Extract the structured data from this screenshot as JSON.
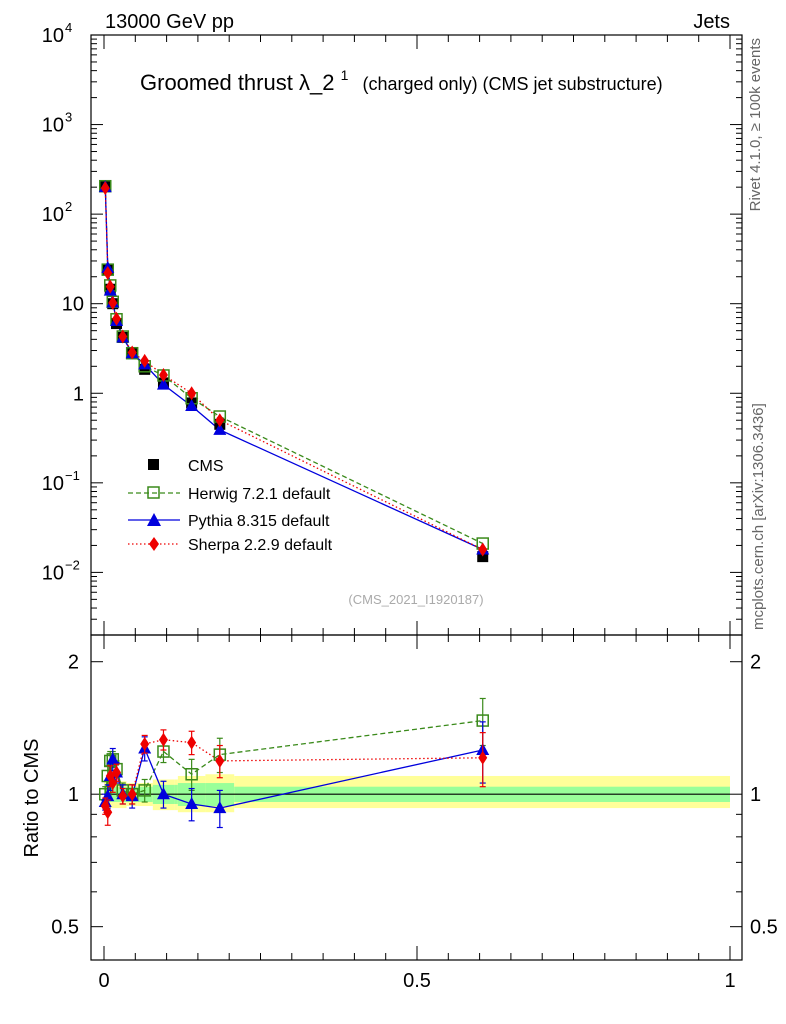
{
  "header": {
    "left": "13000 GeV pp",
    "right": "Jets"
  },
  "title": {
    "main": "Groomed thrust",
    "symbol": "λ_2",
    "superscript": "1",
    "suffix": "(charged only) (CMS jet substructure)"
  },
  "side_labels": {
    "top": "Rivet 4.1.0, ≥ 100k events",
    "bottom": "mcplots.cern.ch [arXiv:1306.3436]"
  },
  "analysis_id": "(CMS_2021_I1920187)",
  "ratio_ylabel": "Ratio to CMS",
  "colors": {
    "data": "#000000",
    "herwig": "#3a8a1a",
    "pythia": "#0000dd",
    "sherpa": "#ee0000",
    "band_inner": "#99ff99",
    "band_outer": "#ffff99"
  },
  "chart_data": [
    {
      "type": "line",
      "scale": "log",
      "xlim": [
        -0.02,
        1.0
      ],
      "ylim": [
        0.002,
        10000
      ],
      "yticks": [
        {
          "v": 10000,
          "label": "10",
          "sup": "4"
        },
        {
          "v": 1000,
          "label": "10",
          "sup": "3"
        },
        {
          "v": 100,
          "label": "10",
          "sup": "2"
        },
        {
          "v": 10,
          "label": "10",
          "sup": ""
        },
        {
          "v": 1,
          "label": "1",
          "sup": ""
        },
        {
          "v": 0.1,
          "label": "10",
          "sup": "−1"
        },
        {
          "v": 0.01,
          "label": "10",
          "sup": "−2"
        }
      ],
      "x": [
        0.002,
        0.006,
        0.01,
        0.014,
        0.02,
        0.03,
        0.045,
        0.065,
        0.095,
        0.14,
        0.185,
        0.605
      ],
      "series": [
        {
          "name": "CMS",
          "key": "data",
          "values": [
            205,
            24,
            14.5,
            10,
            6,
            4.2,
            2.8,
            1.85,
            1.3,
            0.78,
            0.45,
            0.015
          ]
        },
        {
          "name": "Herwig 7.2.1 default",
          "key": "herwig",
          "values": [
            205,
            24,
            16,
            10.5,
            6.7,
            4.3,
            2.8,
            2.0,
            1.58,
            0.88,
            0.55,
            0.021
          ]
        },
        {
          "name": "Pythia 8.315 default",
          "key": "pythia",
          "values": [
            200,
            25,
            14,
            10.3,
            6.4,
            4.2,
            2.8,
            2.1,
            1.25,
            0.72,
            0.39,
            0.018
          ]
        },
        {
          "name": "Sherpa 2.2.9 default",
          "key": "sherpa",
          "values": [
            195,
            22,
            15.5,
            10.2,
            6.8,
            4.3,
            2.85,
            2.3,
            1.6,
            1.0,
            0.5,
            0.018
          ]
        }
      ]
    },
    {
      "type": "line",
      "scale": "log",
      "xlim": [
        -0.02,
        1.0
      ],
      "ylim": [
        0.42,
        2.3
      ],
      "xticks": [
        {
          "v": 0,
          "label": "0"
        },
        {
          "v": 0.5,
          "label": "0.5"
        },
        {
          "v": 1,
          "label": "1"
        }
      ],
      "yticks": [
        {
          "v": 0.5,
          "label": "0.5"
        },
        {
          "v": 1,
          "label": "1"
        },
        {
          "v": 2,
          "label": "2"
        }
      ],
      "band_edges": [
        0.0,
        0.004,
        0.008,
        0.012,
        0.016,
        0.024,
        0.036,
        0.054,
        0.078,
        0.112,
        0.118,
        0.162,
        0.208,
        1.0
      ],
      "band_inner": [
        [
          0.96,
          1.04
        ],
        [
          0.96,
          1.04
        ],
        [
          0.96,
          1.04
        ],
        [
          0.96,
          1.04
        ],
        [
          0.96,
          1.04
        ],
        [
          0.96,
          1.04
        ],
        [
          0.96,
          1.04
        ],
        [
          0.96,
          1.04
        ],
        [
          0.95,
          1.05
        ],
        [
          0.95,
          1.05
        ],
        [
          0.94,
          1.06
        ],
        [
          0.94,
          1.06
        ],
        [
          0.96,
          1.04
        ]
      ],
      "band_outer": [
        [
          0.92,
          1.08
        ],
        [
          0.92,
          1.08
        ],
        [
          0.93,
          1.07
        ],
        [
          0.93,
          1.07
        ],
        [
          0.93,
          1.07
        ],
        [
          0.93,
          1.07
        ],
        [
          0.94,
          1.06
        ],
        [
          0.94,
          1.06
        ],
        [
          0.92,
          1.08
        ],
        [
          0.92,
          1.08
        ],
        [
          0.91,
          1.1
        ],
        [
          0.91,
          1.11
        ],
        [
          0.93,
          1.1
        ]
      ],
      "x": [
        0.002,
        0.006,
        0.01,
        0.014,
        0.02,
        0.03,
        0.045,
        0.065,
        0.095,
        0.14,
        0.185,
        0.605
      ],
      "series": [
        {
          "name": "Herwig 7.2.1 default",
          "key": "herwig",
          "values": [
            1.0,
            1.1,
            1.19,
            1.2,
            1.14,
            1.02,
            1.0,
            1.02,
            1.25,
            1.11,
            1.23,
            1.47
          ],
          "err": [
            0.04,
            0.06,
            0.06,
            0.05,
            0.05,
            0.04,
            0.05,
            0.06,
            0.07,
            0.09,
            0.11,
            0.18
          ]
        },
        {
          "name": "Pythia 8.315 default",
          "key": "pythia",
          "values": [
            0.96,
            0.99,
            1.1,
            1.2,
            1.12,
            1.0,
            0.99,
            1.27,
            1.0,
            0.95,
            0.93,
            1.26
          ],
          "err": [
            0.04,
            0.06,
            0.08,
            0.07,
            0.06,
            0.05,
            0.06,
            0.08,
            0.07,
            0.08,
            0.09,
            0.2
          ]
        },
        {
          "name": "Sherpa 2.2.9 default",
          "key": "sherpa",
          "values": [
            0.94,
            0.91,
            1.1,
            1.06,
            1.12,
            0.99,
            1.0,
            1.3,
            1.33,
            1.31,
            1.19,
            1.21
          ],
          "err": [
            0.04,
            0.06,
            0.06,
            0.05,
            0.05,
            0.04,
            0.05,
            0.06,
            0.07,
            0.08,
            0.1,
            0.17
          ]
        }
      ]
    }
  ]
}
